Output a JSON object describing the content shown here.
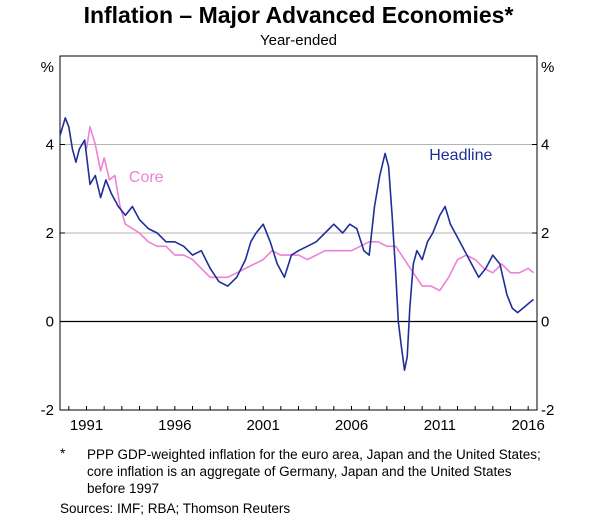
{
  "chart_data": {
    "type": "line",
    "title": "Inflation – Major Advanced Economies*",
    "subtitle": "Year-ended",
    "ylabel_left": "%",
    "ylabel_right": "%",
    "ylim": [
      -2,
      6
    ],
    "yticks": [
      -2,
      0,
      2,
      4
    ],
    "xlim": [
      1989.5,
      2016.5
    ],
    "xticks": [
      1991,
      1996,
      2001,
      2006,
      2011,
      2016
    ],
    "grid": true,
    "series": [
      {
        "name": "Headline",
        "color": "#1f2f96",
        "x": [
          1989.5,
          1989.8,
          1990.0,
          1990.2,
          1990.4,
          1990.6,
          1990.9,
          1991.2,
          1991.5,
          1991.8,
          1992.1,
          1992.4,
          1992.8,
          1993.2,
          1993.6,
          1994.0,
          1994.5,
          1995.0,
          1995.5,
          1996.0,
          1996.5,
          1997.0,
          1997.5,
          1998.0,
          1998.5,
          1999.0,
          1999.5,
          2000.0,
          2000.3,
          2000.6,
          2001.0,
          2001.4,
          2001.8,
          2002.2,
          2002.6,
          2003.0,
          2003.5,
          2004.0,
          2004.5,
          2005.0,
          2005.5,
          2005.9,
          2006.3,
          2006.7,
          2007.0,
          2007.3,
          2007.6,
          2007.9,
          2008.1,
          2008.3,
          2008.5,
          2008.65,
          2008.8,
          2009.0,
          2009.15,
          2009.3,
          2009.5,
          2009.7,
          2010.0,
          2010.3,
          2010.6,
          2011.0,
          2011.3,
          2011.6,
          2012.0,
          2012.4,
          2012.8,
          2013.2,
          2013.6,
          2014.0,
          2014.4,
          2014.8,
          2015.1,
          2015.4,
          2015.7,
          2016.0,
          2016.3
        ],
        "values": [
          4.2,
          4.6,
          4.4,
          3.9,
          3.6,
          3.9,
          4.1,
          3.1,
          3.3,
          2.8,
          3.2,
          2.9,
          2.6,
          2.4,
          2.6,
          2.3,
          2.1,
          2.0,
          1.8,
          1.8,
          1.7,
          1.5,
          1.6,
          1.2,
          0.9,
          0.8,
          1.0,
          1.4,
          1.8,
          2.0,
          2.2,
          1.8,
          1.3,
          1.0,
          1.5,
          1.6,
          1.7,
          1.8,
          2.0,
          2.2,
          2.0,
          2.2,
          2.1,
          1.6,
          1.5,
          2.6,
          3.3,
          3.8,
          3.5,
          2.4,
          1.1,
          0.0,
          -0.5,
          -1.1,
          -0.8,
          0.3,
          1.3,
          1.6,
          1.4,
          1.8,
          2.0,
          2.4,
          2.6,
          2.2,
          1.9,
          1.6,
          1.3,
          1.0,
          1.2,
          1.5,
          1.3,
          0.6,
          0.3,
          0.2,
          0.3,
          0.4,
          0.5
        ]
      },
      {
        "name": "Core",
        "color": "#ee82d6",
        "x": [
          1991.0,
          1991.2,
          1991.5,
          1991.8,
          1992.0,
          1992.3,
          1992.6,
          1992.9,
          1993.2,
          1993.6,
          1994.0,
          1994.5,
          1995.0,
          1995.5,
          1996.0,
          1996.5,
          1997.0,
          1997.5,
          1998.0,
          1998.5,
          1999.0,
          1999.5,
          2000.0,
          2000.5,
          2001.0,
          2001.5,
          2002.0,
          2002.5,
          2003.0,
          2003.5,
          2004.0,
          2004.5,
          2005.0,
          2005.5,
          2006.0,
          2006.5,
          2007.0,
          2007.5,
          2008.0,
          2008.5,
          2009.0,
          2009.5,
          2010.0,
          2010.5,
          2011.0,
          2011.5,
          2012.0,
          2012.5,
          2013.0,
          2013.5,
          2014.0,
          2014.5,
          2015.0,
          2015.5,
          2016.0,
          2016.3
        ],
        "values": [
          3.9,
          4.4,
          4.0,
          3.4,
          3.7,
          3.2,
          3.3,
          2.6,
          2.2,
          2.1,
          2.0,
          1.8,
          1.7,
          1.7,
          1.5,
          1.5,
          1.4,
          1.2,
          1.0,
          1.0,
          1.0,
          1.1,
          1.2,
          1.3,
          1.4,
          1.6,
          1.5,
          1.5,
          1.5,
          1.4,
          1.5,
          1.6,
          1.6,
          1.6,
          1.6,
          1.7,
          1.8,
          1.8,
          1.7,
          1.7,
          1.4,
          1.1,
          0.8,
          0.8,
          0.7,
          1.0,
          1.4,
          1.5,
          1.4,
          1.2,
          1.1,
          1.3,
          1.1,
          1.1,
          1.2,
          1.1
        ]
      }
    ],
    "annotations": [
      {
        "text": "Headline",
        "x": 2010.4,
        "y": 3.65
      },
      {
        "text": "Core",
        "x": 1993.4,
        "y": 3.15
      }
    ]
  },
  "footnote": {
    "mark": "*",
    "text": "PPP GDP-weighted inflation for the euro area, Japan and the United States; core inflation is an aggregate of Germany, Japan and the United States before 1997"
  },
  "sources": "Sources:  IMF; RBA; Thomson Reuters"
}
